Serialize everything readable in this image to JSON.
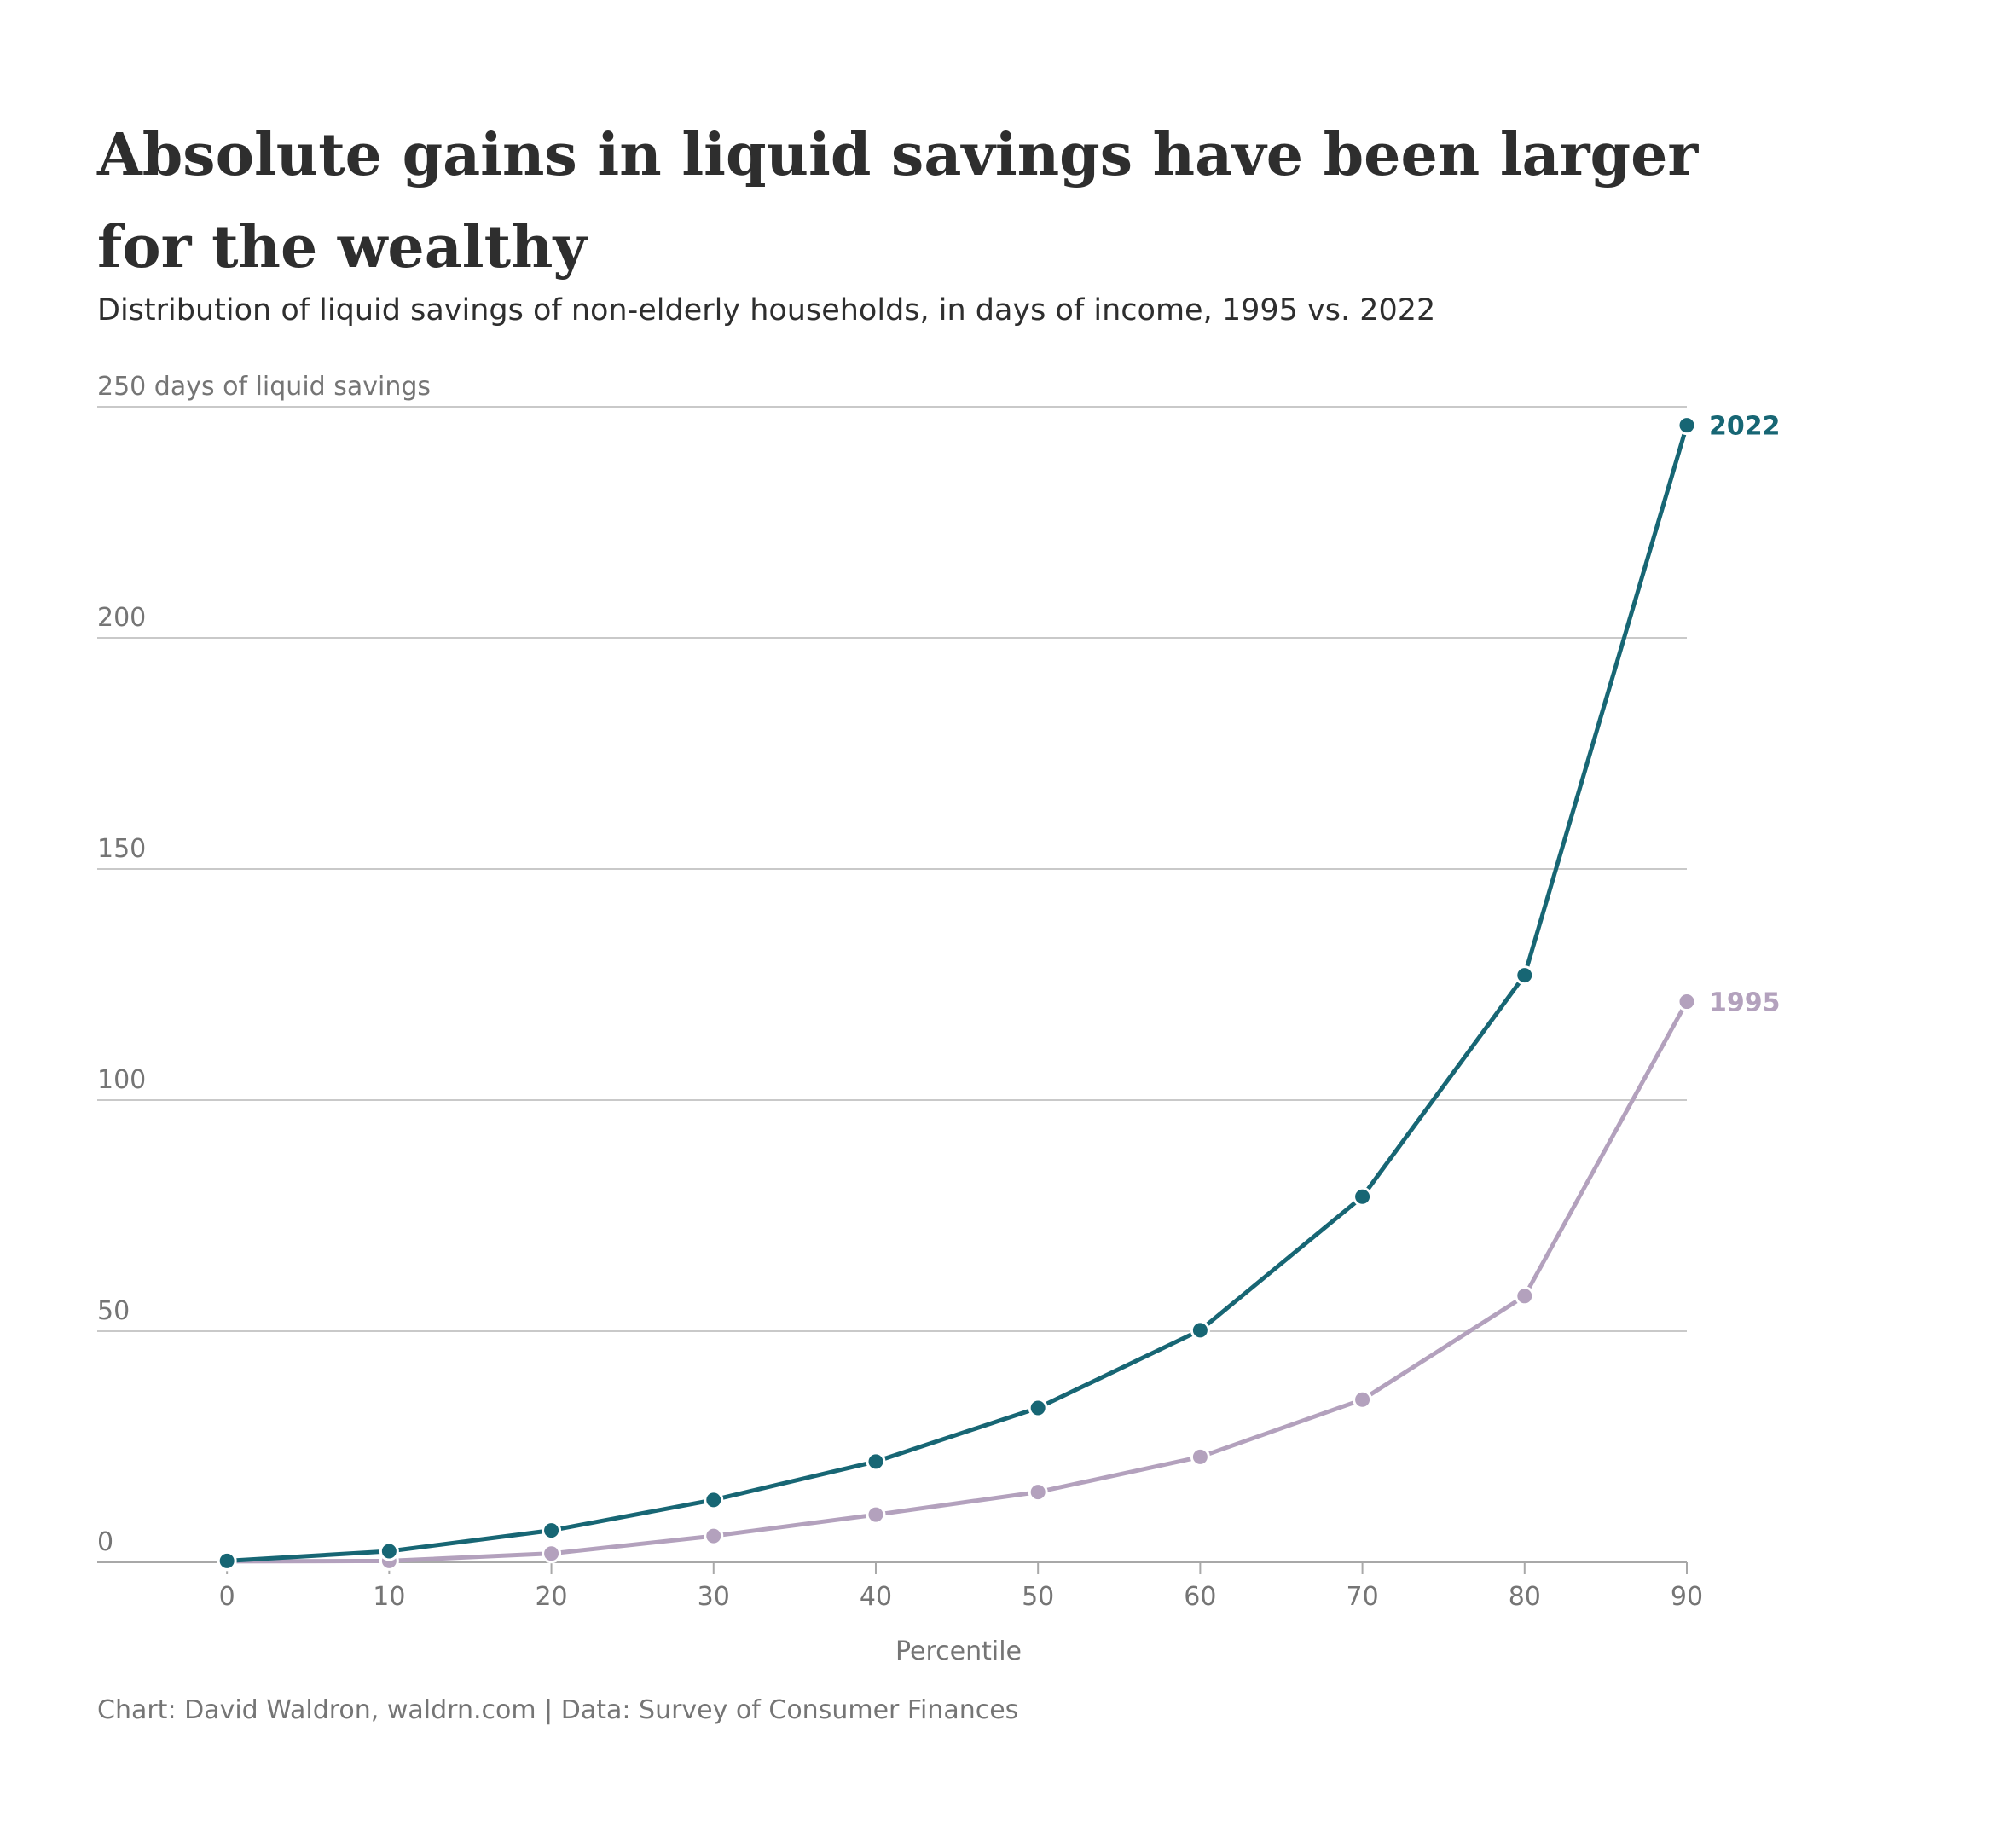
{
  "title": "Absolute gains in liquid savings have been larger for the wealthy",
  "subtitle": "Distribution of liquid savings of non-elderly households, in days of income, 1995 vs. 2022",
  "caption": "Chart: David Waldron, waldrn.com | Data: Survey of Consumer Finances",
  "chart_data": {
    "type": "line",
    "ylabel": "days of liquid savings",
    "xlabel": "Percentile",
    "x": [
      0,
      10,
      20,
      30,
      40,
      50,
      60,
      70,
      80,
      90
    ],
    "xlim": [
      -8,
      90
    ],
    "ylim": [
      0,
      250
    ],
    "xticks": [
      "0",
      "10",
      "20",
      "30",
      "40",
      "50",
      "60",
      "70",
      "80",
      "90"
    ],
    "yticks": [
      {
        "value": 0,
        "label": "0"
      },
      {
        "value": 50,
        "label": "50"
      },
      {
        "value": 100,
        "label": "100"
      },
      {
        "value": 150,
        "label": "150"
      },
      {
        "value": 200,
        "label": "200"
      },
      {
        "value": 250,
        "label": "250 days of liquid savings"
      }
    ],
    "grid": true,
    "series": [
      {
        "name": "1995",
        "color": "#b3a1bd",
        "values": [
          0.2,
          0.3,
          1.9,
          5.7,
          10.3,
          15.2,
          22.8,
          35.2,
          57.6,
          121.3
        ]
      },
      {
        "name": "2022",
        "color": "#176674",
        "values": [
          0.3,
          2.4,
          6.9,
          13.5,
          21.8,
          33.4,
          50.2,
          79.1,
          127.0,
          246.0
        ]
      }
    ]
  }
}
